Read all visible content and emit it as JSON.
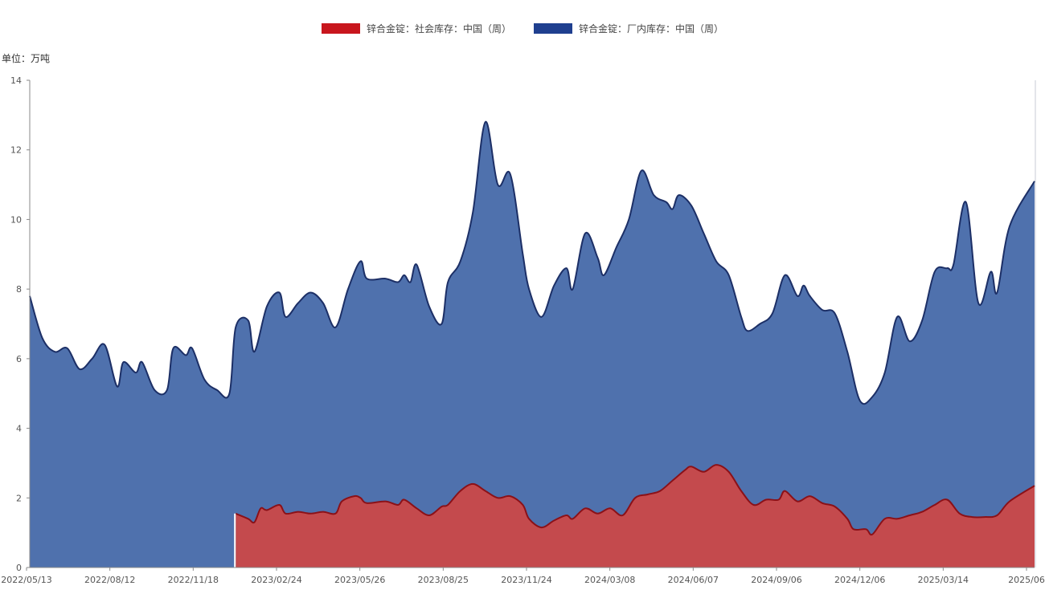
{
  "legend": [
    {
      "label": "锌合金锭：社会库存：中国（周）",
      "color": "#c8161d"
    },
    {
      "label": "锌合金锭：厂内库存：中国（周）",
      "color": "#1f3f8f"
    }
  ],
  "unit_label": "单位：万吨",
  "colors": {
    "social_fill": "#c44a4d",
    "social_line": "#8b1118",
    "factory_fill": "#4f71ad",
    "factory_line": "#1c2f66",
    "axis": "#8a8a8a"
  },
  "chart_data": {
    "type": "area",
    "ylim": [
      0,
      14
    ],
    "y_ticks": [
      0,
      2,
      4,
      6,
      8,
      10,
      12,
      14
    ],
    "x_range": [
      "2022-05-13",
      "2025-06-13"
    ],
    "x_tick_labels": [
      "2022/05/13",
      "2022/08/12",
      "2022/11/18",
      "2023/02/24",
      "2023/05/26",
      "2023/08/25",
      "2023/11/24",
      "2024/03/08",
      "2024/06/07",
      "2024/09/06",
      "2024/12/06",
      "2025/03/14",
      "2025/06"
    ],
    "series": [
      {
        "name": "锌合金锭：厂内库存：中国（周）",
        "points": [
          [
            "2022-05-13",
            7.8
          ],
          [
            "2022-05-27",
            6.6
          ],
          [
            "2022-06-10",
            6.2
          ],
          [
            "2022-06-24",
            6.3
          ],
          [
            "2022-07-08",
            5.7
          ],
          [
            "2022-07-22",
            6.0
          ],
          [
            "2022-08-05",
            6.4
          ],
          [
            "2022-08-19",
            5.2
          ],
          [
            "2022-08-26",
            5.9
          ],
          [
            "2022-09-09",
            5.6
          ],
          [
            "2022-09-16",
            5.9
          ],
          [
            "2022-09-30",
            5.1
          ],
          [
            "2022-10-14",
            5.1
          ],
          [
            "2022-10-21",
            6.3
          ],
          [
            "2022-11-04",
            6.1
          ],
          [
            "2022-11-11",
            6.3
          ],
          [
            "2022-11-25",
            5.4
          ],
          [
            "2022-12-09",
            5.1
          ],
          [
            "2022-12-23",
            5.0
          ],
          [
            "2022-12-30",
            6.9
          ],
          [
            "2023-01-13",
            7.1
          ],
          [
            "2023-01-20",
            6.2
          ],
          [
            "2023-02-03",
            7.5
          ],
          [
            "2023-02-17",
            7.9
          ],
          [
            "2023-02-24",
            7.2
          ],
          [
            "2023-03-10",
            7.6
          ],
          [
            "2023-03-24",
            7.9
          ],
          [
            "2023-04-07",
            7.6
          ],
          [
            "2023-04-21",
            6.9
          ],
          [
            "2023-05-05",
            8.0
          ],
          [
            "2023-05-19",
            8.8
          ],
          [
            "2023-05-26",
            8.3
          ],
          [
            "2023-06-16",
            8.3
          ],
          [
            "2023-06-30",
            8.2
          ],
          [
            "2023-07-07",
            8.4
          ],
          [
            "2023-07-14",
            8.2
          ],
          [
            "2023-07-21",
            8.7
          ],
          [
            "2023-08-04",
            7.5
          ],
          [
            "2023-08-18",
            7.0
          ],
          [
            "2023-08-25",
            8.2
          ],
          [
            "2023-09-08",
            8.8
          ],
          [
            "2023-09-22",
            10.2
          ],
          [
            "2023-10-06",
            12.8
          ],
          [
            "2023-10-20",
            11.0
          ],
          [
            "2023-11-03",
            11.3
          ],
          [
            "2023-11-17",
            9.0
          ],
          [
            "2023-11-24",
            8.0
          ],
          [
            "2023-12-08",
            7.2
          ],
          [
            "2023-12-22",
            8.1
          ],
          [
            "2024-01-05",
            8.6
          ],
          [
            "2024-01-12",
            8.0
          ],
          [
            "2024-01-26",
            9.6
          ],
          [
            "2024-02-09",
            8.9
          ],
          [
            "2024-02-16",
            8.4
          ],
          [
            "2024-03-01",
            9.2
          ],
          [
            "2024-03-15",
            10.0
          ],
          [
            "2024-03-29",
            11.4
          ],
          [
            "2024-04-12",
            10.7
          ],
          [
            "2024-04-26",
            10.5
          ],
          [
            "2024-05-03",
            10.3
          ],
          [
            "2024-05-10",
            10.7
          ],
          [
            "2024-05-24",
            10.4
          ],
          [
            "2024-06-07",
            9.6
          ],
          [
            "2024-06-21",
            8.8
          ],
          [
            "2024-07-05",
            8.4
          ],
          [
            "2024-07-19",
            7.2
          ],
          [
            "2024-07-26",
            6.8
          ],
          [
            "2024-08-09",
            7.0
          ],
          [
            "2024-08-23",
            7.3
          ],
          [
            "2024-09-06",
            8.4
          ],
          [
            "2024-09-20",
            7.8
          ],
          [
            "2024-09-27",
            8.1
          ],
          [
            "2024-10-04",
            7.8
          ],
          [
            "2024-10-18",
            7.4
          ],
          [
            "2024-11-01",
            7.3
          ],
          [
            "2024-11-15",
            6.2
          ],
          [
            "2024-11-29",
            4.8
          ],
          [
            "2024-12-13",
            4.9
          ],
          [
            "2024-12-27",
            5.6
          ],
          [
            "2025-01-10",
            7.2
          ],
          [
            "2025-01-24",
            6.5
          ],
          [
            "2025-02-07",
            7.1
          ],
          [
            "2025-02-21",
            8.5
          ],
          [
            "2025-03-07",
            8.6
          ],
          [
            "2025-03-14",
            8.7
          ],
          [
            "2025-03-28",
            10.5
          ],
          [
            "2025-04-11",
            7.6
          ],
          [
            "2025-04-25",
            8.5
          ],
          [
            "2025-05-02",
            7.9
          ],
          [
            "2025-05-16",
            9.8
          ],
          [
            "2025-06-13",
            11.1
          ]
        ]
      },
      {
        "name": "锌合金锭：社会库存：中国（周）",
        "points": [
          [
            "2022-12-30",
            1.55
          ],
          [
            "2023-01-13",
            1.4
          ],
          [
            "2023-01-20",
            1.3
          ],
          [
            "2023-01-27",
            1.7
          ],
          [
            "2023-02-03",
            1.65
          ],
          [
            "2023-02-17",
            1.8
          ],
          [
            "2023-02-24",
            1.55
          ],
          [
            "2023-03-10",
            1.6
          ],
          [
            "2023-03-24",
            1.55
          ],
          [
            "2023-04-07",
            1.6
          ],
          [
            "2023-04-21",
            1.55
          ],
          [
            "2023-04-28",
            1.9
          ],
          [
            "2023-05-12",
            2.05
          ],
          [
            "2023-05-19",
            2.0
          ],
          [
            "2023-05-26",
            1.85
          ],
          [
            "2023-06-16",
            1.9
          ],
          [
            "2023-06-30",
            1.8
          ],
          [
            "2023-07-07",
            1.95
          ],
          [
            "2023-07-21",
            1.7
          ],
          [
            "2023-08-04",
            1.5
          ],
          [
            "2023-08-18",
            1.75
          ],
          [
            "2023-08-25",
            1.8
          ],
          [
            "2023-09-08",
            2.2
          ],
          [
            "2023-09-22",
            2.4
          ],
          [
            "2023-10-06",
            2.2
          ],
          [
            "2023-10-20",
            2.0
          ],
          [
            "2023-11-03",
            2.05
          ],
          [
            "2023-11-17",
            1.8
          ],
          [
            "2023-11-24",
            1.4
          ],
          [
            "2023-12-08",
            1.15
          ],
          [
            "2023-12-22",
            1.35
          ],
          [
            "2024-01-05",
            1.5
          ],
          [
            "2024-01-12",
            1.4
          ],
          [
            "2024-01-26",
            1.7
          ],
          [
            "2024-02-09",
            1.55
          ],
          [
            "2024-02-23",
            1.7
          ],
          [
            "2024-03-08",
            1.5
          ],
          [
            "2024-03-22",
            2.0
          ],
          [
            "2024-04-05",
            2.1
          ],
          [
            "2024-04-19",
            2.2
          ],
          [
            "2024-05-03",
            2.5
          ],
          [
            "2024-05-17",
            2.8
          ],
          [
            "2024-05-24",
            2.9
          ],
          [
            "2024-06-07",
            2.75
          ],
          [
            "2024-06-21",
            2.95
          ],
          [
            "2024-07-05",
            2.75
          ],
          [
            "2024-07-19",
            2.2
          ],
          [
            "2024-08-02",
            1.8
          ],
          [
            "2024-08-16",
            1.95
          ],
          [
            "2024-08-30",
            1.95
          ],
          [
            "2024-09-06",
            2.2
          ],
          [
            "2024-09-20",
            1.9
          ],
          [
            "2024-10-04",
            2.05
          ],
          [
            "2024-10-18",
            1.85
          ],
          [
            "2024-11-01",
            1.75
          ],
          [
            "2024-11-15",
            1.4
          ],
          [
            "2024-11-22",
            1.1
          ],
          [
            "2024-12-06",
            1.1
          ],
          [
            "2024-12-13",
            0.95
          ],
          [
            "2024-12-27",
            1.4
          ],
          [
            "2025-01-10",
            1.4
          ],
          [
            "2025-01-24",
            1.5
          ],
          [
            "2025-02-07",
            1.6
          ],
          [
            "2025-02-21",
            1.8
          ],
          [
            "2025-03-07",
            1.95
          ],
          [
            "2025-03-21",
            1.55
          ],
          [
            "2025-04-04",
            1.45
          ],
          [
            "2025-04-18",
            1.45
          ],
          [
            "2025-05-02",
            1.5
          ],
          [
            "2025-05-16",
            1.9
          ],
          [
            "2025-06-13",
            2.35
          ]
        ]
      }
    ]
  }
}
